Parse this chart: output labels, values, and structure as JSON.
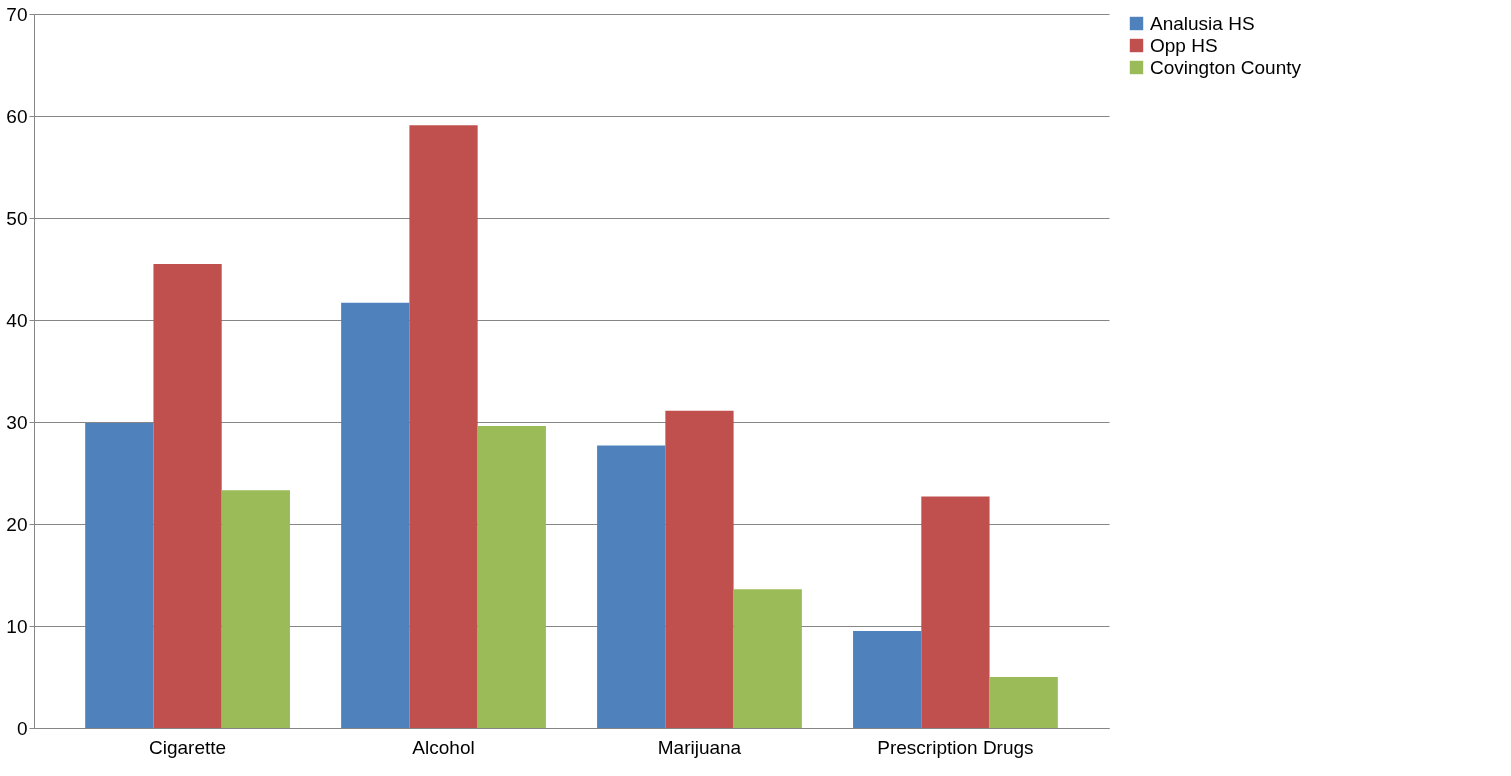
{
  "chart_data": {
    "type": "bar",
    "categories": [
      "Cigarette",
      "Alcohol",
      "Marijuana",
      "Prescription Drugs"
    ],
    "series": [
      {
        "name": "Analusia HS",
        "color": "#4f81bd",
        "values": [
          29.9,
          41.7,
          27.7,
          9.5
        ]
      },
      {
        "name": "Opp HS",
        "color": "#c0504d",
        "values": [
          45.5,
          59.1,
          31.1,
          22.7
        ]
      },
      {
        "name": "Covington County",
        "color": "#9bbb59",
        "values": [
          23.3,
          29.6,
          13.6,
          5.0
        ]
      }
    ],
    "ylim": [
      0,
      70
    ],
    "yticks": [
      0,
      10,
      20,
      30,
      40,
      50,
      60,
      70
    ],
    "grid": "y",
    "legend": "right"
  }
}
